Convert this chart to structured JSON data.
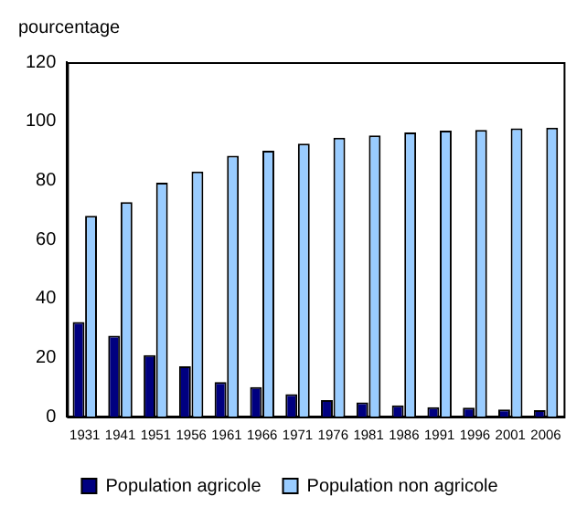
{
  "chart_data": {
    "type": "bar",
    "ylabel": "pourcentage",
    "categories": [
      "1931",
      "1941",
      "1951",
      "1956",
      "1961",
      "1966",
      "1971",
      "1976",
      "1981",
      "1986",
      "1991",
      "1996",
      "2001",
      "2006"
    ],
    "series": [
      {
        "name": "Population agricole",
        "color": "#000080",
        "values": [
          32,
          27.4,
          20.8,
          17,
          11.7,
          10,
          7.6,
          5.6,
          4.8,
          3.8,
          3.2,
          3,
          2.4,
          2.2
        ]
      },
      {
        "name": "Population non agricole",
        "color": "#99ccff",
        "values": [
          68,
          72.6,
          79.2,
          83,
          88.3,
          90,
          92.4,
          94.4,
          95.2,
          96.2,
          96.8,
          97,
          97.6,
          97.8
        ]
      }
    ],
    "ylim": [
      0,
      120
    ],
    "yticks": [
      0,
      20,
      40,
      60,
      80,
      100,
      120
    ],
    "grid": false,
    "legend": "bottom"
  }
}
